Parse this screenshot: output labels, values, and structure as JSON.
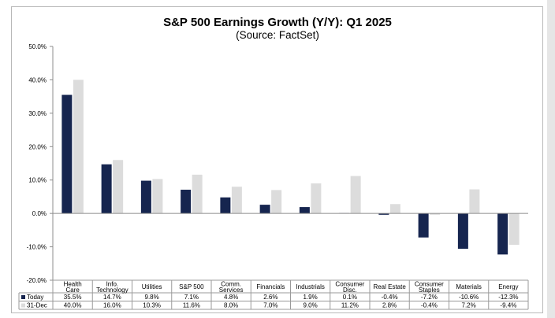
{
  "title": "S&P 500 Earnings Growth (Y/Y): Q1 2025",
  "subtitle": "(Source: FactSet)",
  "chart_data": {
    "type": "bar",
    "title": "S&P 500 Earnings Growth (Y/Y): Q1 2025",
    "subtitle": "(Source: FactSet)",
    "categories": [
      [
        "Health",
        "Care"
      ],
      [
        "Info.",
        "Technology"
      ],
      [
        "Utilities"
      ],
      [
        "S&P 500"
      ],
      [
        "Comm.",
        "Services"
      ],
      [
        "Financials"
      ],
      [
        "Industrials"
      ],
      [
        "Consumer",
        "Disc."
      ],
      [
        "Real Estate"
      ],
      [
        "Consumer",
        "Staples"
      ],
      [
        "Materials"
      ],
      [
        "Energy"
      ]
    ],
    "series": [
      {
        "name": "Today",
        "color": "#16254f",
        "values": [
          35.5,
          14.7,
          9.8,
          7.1,
          4.8,
          2.6,
          1.9,
          0.1,
          -0.4,
          -7.2,
          -10.6,
          -12.3
        ],
        "labels": [
          "35.5%",
          "14.7%",
          "9.8%",
          "7.1%",
          "4.8%",
          "2.6%",
          "1.9%",
          "0.1%",
          "-0.4%",
          "-7.2%",
          "-10.6%",
          "-12.3%"
        ]
      },
      {
        "name": "31-Dec",
        "color": "#dcdcdc",
        "values": [
          40.0,
          16.0,
          10.3,
          11.6,
          8.0,
          7.0,
          9.0,
          11.2,
          2.8,
          -0.4,
          7.2,
          -9.4
        ],
        "labels": [
          "40.0%",
          "16.0%",
          "10.3%",
          "11.6%",
          "8.0%",
          "7.0%",
          "9.0%",
          "11.2%",
          "2.8%",
          "-0.4%",
          "7.2%",
          "-9.4%"
        ]
      }
    ],
    "ylim": [
      -20,
      50
    ],
    "yticks": [
      50,
      40,
      30,
      20,
      10,
      0,
      -10,
      -20
    ],
    "ytick_labels": [
      "50.0%",
      "40.0%",
      "30.0%",
      "20.0%",
      "10.0%",
      "0.0%",
      "-10.0%",
      "-20.0%"
    ],
    "grid": false,
    "legend": "data-table"
  }
}
